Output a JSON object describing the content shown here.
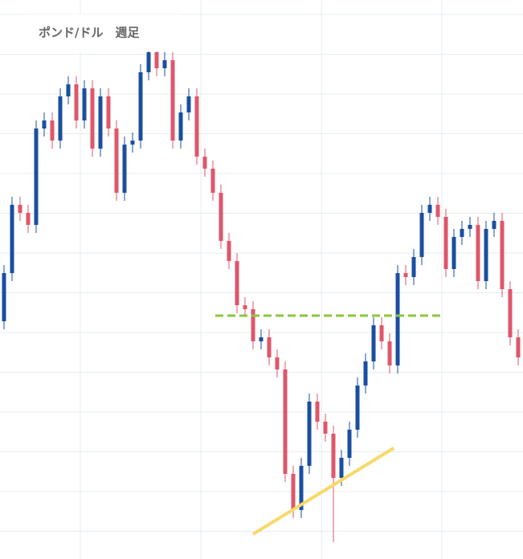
{
  "chart_data": {
    "type": "candlestick",
    "title": "ポンド/ドル　週足",
    "up_color": "#1a4fa0",
    "down_color": "#e0566a",
    "ylim": [
      0,
      696
    ],
    "grid": true,
    "open": [
      296,
      356,
      441,
      431,
      416,
      536,
      546,
      521,
      576,
      591,
      546,
      586,
      511,
      576,
      536,
      456,
      516,
      521,
      606,
      631,
      611,
      621,
      521,
      556,
      576,
      501,
      486,
      456,
      396,
      371,
      316,
      311,
      271,
      276,
      251,
      236,
      106,
      61,
      116,
      196,
      171,
      156,
      101,
      126,
      161,
      216,
      246,
      291,
      271,
      241,
      356,
      351,
      376,
      431,
      441,
      426,
      361,
      401,
      411,
      416,
      346,
      411,
      421,
      336,
      276
    ],
    "high": [
      366,
      451,
      451,
      441,
      546,
      556,
      556,
      586,
      601,
      601,
      596,
      596,
      586,
      586,
      546,
      526,
      531,
      616,
      641,
      641,
      631,
      631,
      566,
      586,
      586,
      511,
      496,
      466,
      406,
      381,
      326,
      321,
      286,
      286,
      261,
      246,
      116,
      126,
      206,
      206,
      181,
      166,
      136,
      171,
      226,
      256,
      301,
      301,
      281,
      366,
      366,
      386,
      441,
      451,
      451,
      436,
      411,
      421,
      426,
      426,
      421,
      431,
      431,
      346,
      286
    ],
    "low": [
      286,
      346,
      421,
      406,
      406,
      526,
      511,
      511,
      566,
      536,
      536,
      501,
      501,
      526,
      446,
      446,
      506,
      511,
      596,
      601,
      601,
      511,
      511,
      546,
      491,
      476,
      446,
      386,
      361,
      306,
      301,
      261,
      261,
      241,
      226,
      96,
      51,
      51,
      106,
      161,
      146,
      21,
      91,
      116,
      151,
      206,
      236,
      261,
      231,
      231,
      341,
      341,
      366,
      421,
      416,
      351,
      351,
      391,
      401,
      336,
      336,
      401,
      326,
      266,
      241
    ],
    "close": [
      356,
      441,
      431,
      416,
      536,
      546,
      521,
      576,
      591,
      546,
      586,
      511,
      576,
      536,
      456,
      516,
      521,
      606,
      631,
      611,
      621,
      521,
      556,
      576,
      501,
      486,
      456,
      396,
      371,
      316,
      311,
      271,
      276,
      251,
      236,
      106,
      61,
      116,
      196,
      171,
      156,
      101,
      126,
      161,
      216,
      246,
      291,
      271,
      241,
      356,
      351,
      376,
      431,
      441,
      426,
      361,
      401,
      411,
      416,
      346,
      411,
      421,
      336,
      276,
      251
    ]
  }
}
